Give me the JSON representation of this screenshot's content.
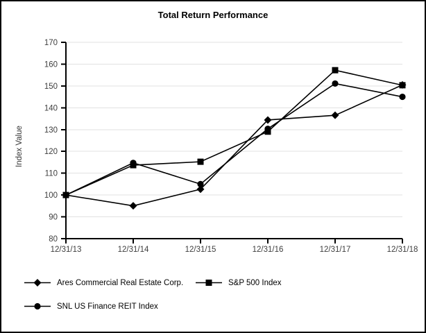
{
  "page": {
    "background": "#ffffff",
    "border_color": "#000000"
  },
  "chart_data": {
    "type": "line",
    "title": "Total Return Performance",
    "xlabel": "",
    "ylabel": "Index Value",
    "categories": [
      "12/31/13",
      "12/31/14",
      "12/31/15",
      "12/31/16",
      "12/31/17",
      "12/31/18"
    ],
    "series": [
      {
        "name": "Ares Commercial Real Estate Corp.",
        "marker": "diamond",
        "color": "#000000",
        "values": [
          100.0,
          95.06,
          102.64,
          134.4,
          136.55,
          150.47
        ]
      },
      {
        "name": "S&P 500 Index",
        "marker": "square",
        "color": "#000000",
        "values": [
          100.0,
          113.69,
          115.26,
          129.05,
          157.22,
          150.33
        ]
      },
      {
        "name": "SNL US Finance REIT Index",
        "marker": "circle",
        "color": "#000000",
        "values": [
          100.0,
          114.73,
          105.02,
          130.35,
          151.1,
          145.02
        ]
      }
    ],
    "ylim": [
      80,
      170
    ],
    "ytick_step": 10,
    "yticks": [
      80,
      90,
      100,
      110,
      120,
      130,
      140,
      150,
      160,
      170
    ],
    "grid": "horizontal",
    "gridline_color": "#e2e2e2",
    "axis_color": "#000000",
    "tick_label_color": "#3d3d3d",
    "line_color": "#000000",
    "legend_position": "bottom-left"
  }
}
